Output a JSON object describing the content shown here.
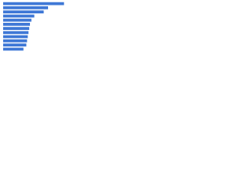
{
  "chart_data": {
    "type": "bar",
    "orientation": "horizontal",
    "categories": [
      null,
      null,
      null,
      null,
      null,
      null,
      null,
      null,
      null,
      null,
      null,
      null
    ],
    "values": [
      84,
      62,
      56,
      43,
      39,
      37,
      36,
      35,
      34,
      33,
      32,
      28
    ],
    "color": "#3f78d6",
    "xlim": [
      0,
      100
    ]
  }
}
